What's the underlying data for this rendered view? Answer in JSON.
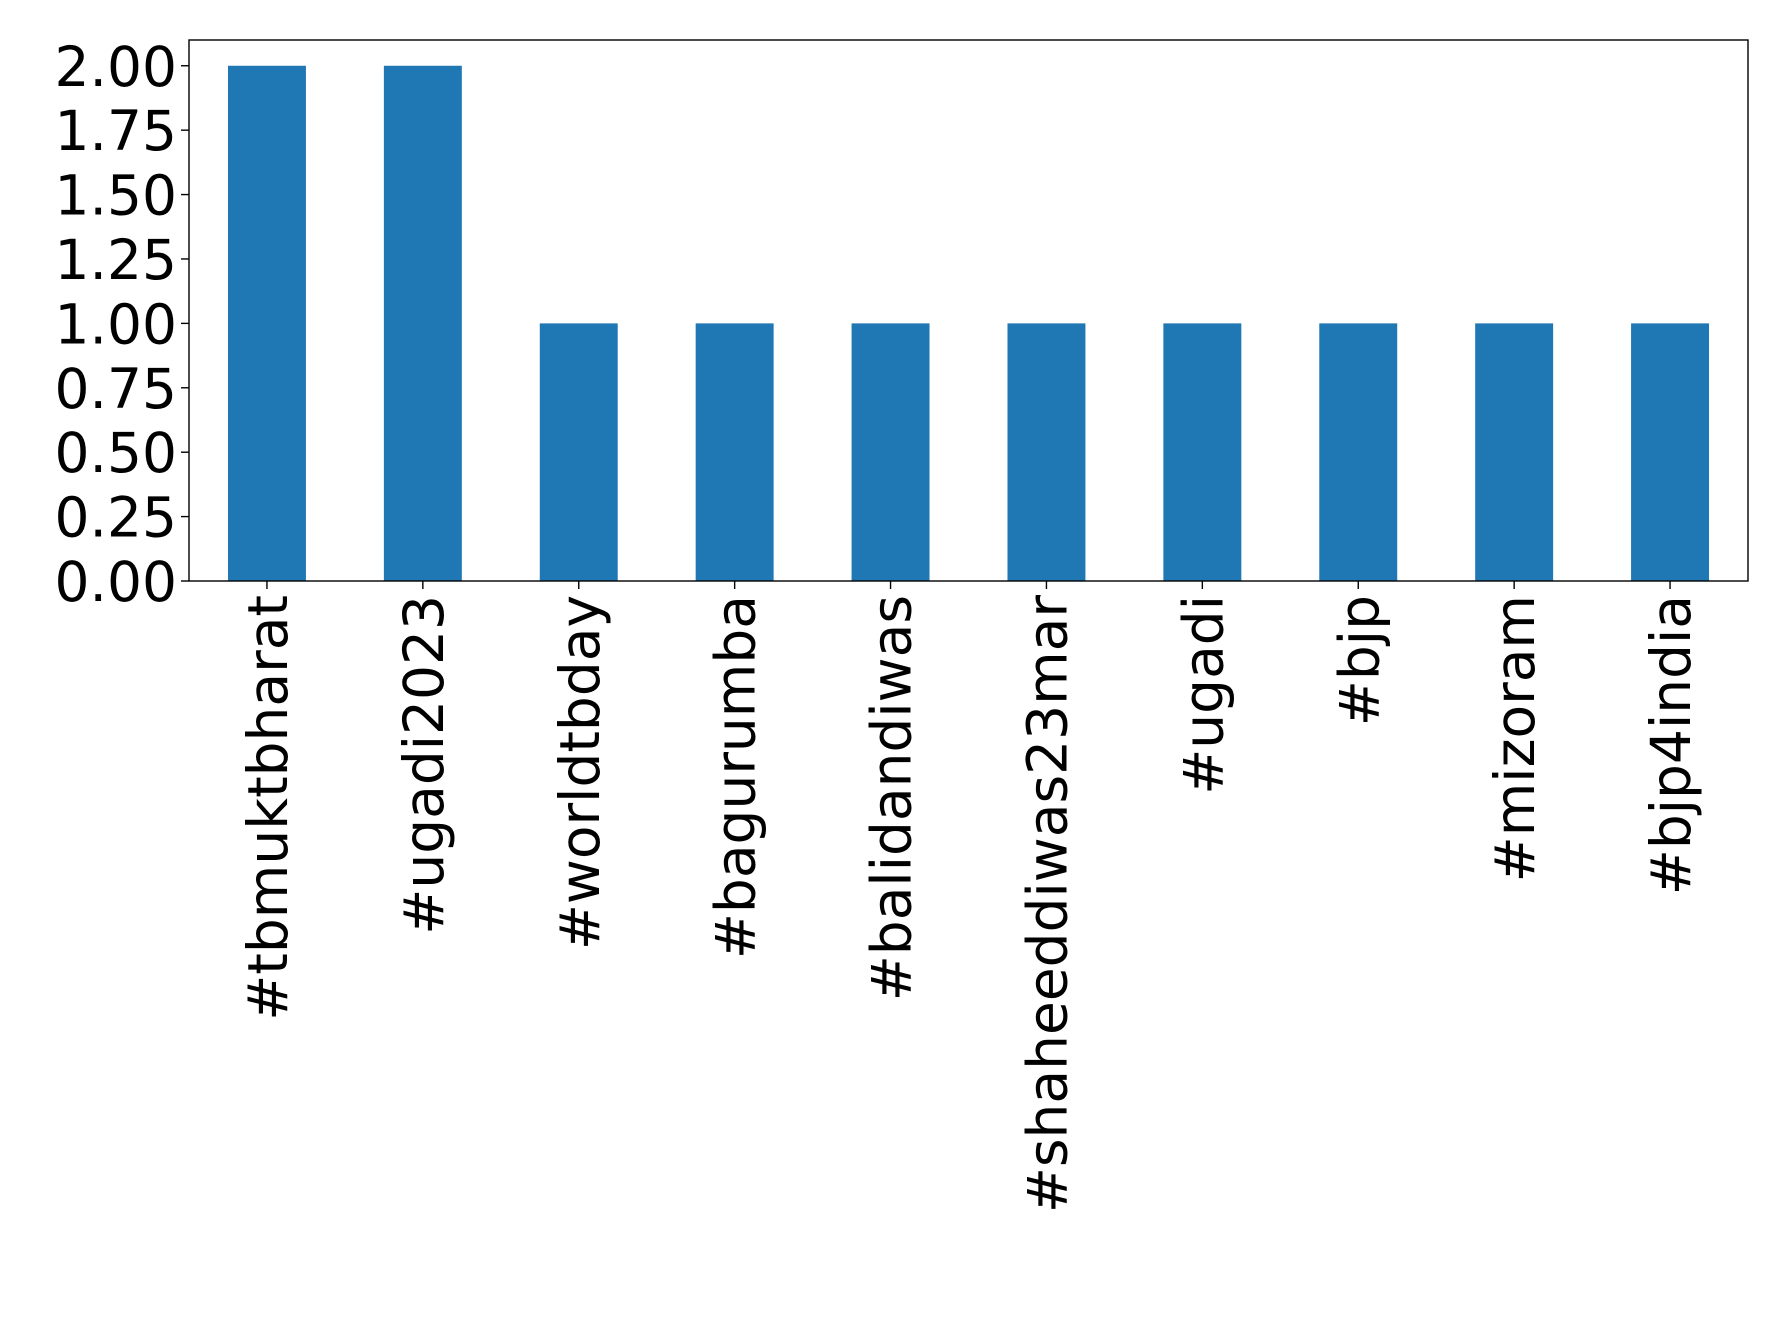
{
  "chart_data": {
    "type": "bar",
    "categories": [
      "#tbmuktbharat",
      "#ugadi2023",
      "#worldtbday",
      "#bagurumba",
      "#balidandiwas",
      "#shaheeddiwas23mar",
      "#ugadi",
      "#bjp",
      "#mizoram",
      "#bjp4india"
    ],
    "values": [
      2,
      2,
      1,
      1,
      1,
      1,
      1,
      1,
      1,
      1
    ],
    "color": "#1f77b4",
    "ylim": [
      0,
      2.1
    ],
    "yticks": [
      {
        "value": 0,
        "label": "0.00"
      },
      {
        "value": 0.25,
        "label": "0.25"
      },
      {
        "value": 0.5,
        "label": "0.50"
      },
      {
        "value": 0.75,
        "label": "0.75"
      },
      {
        "value": 1,
        "label": "1.00"
      },
      {
        "value": 1.25,
        "label": "1.25"
      },
      {
        "value": 1.5,
        "label": "1.50"
      },
      {
        "value": 1.75,
        "label": "1.75"
      },
      {
        "value": 2,
        "label": "2.00"
      }
    ],
    "grid": false
  }
}
